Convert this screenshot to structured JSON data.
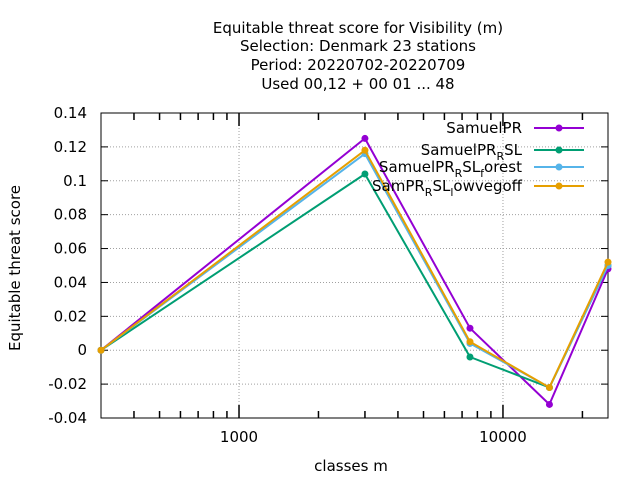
{
  "chart_data": {
    "type": "line",
    "title_lines": [
      "Equitable threat score  for Visibility (m)",
      "Selection: Denmark     23 stations",
      "Period: 20220702-20220709",
      "Used  00,12  + 00 01 ... 48"
    ],
    "xlabel": "classes m",
    "ylabel": "Equitable threat score",
    "x_scale": "log",
    "xlim": [
      300,
      25000
    ],
    "ylim": [
      -0.04,
      0.14
    ],
    "x_ticks": [
      1000,
      10000
    ],
    "x_tick_labels": [
      "1000",
      "10000"
    ],
    "y_ticks": [
      -0.04,
      -0.02,
      0,
      0.02,
      0.04,
      0.06,
      0.08,
      0.1,
      0.12,
      0.14
    ],
    "y_tick_labels": [
      "-0.04",
      "-0.02",
      "0",
      "0.02",
      "0.04",
      "0.06",
      "0.08",
      "0.1",
      "0.12",
      "0.14"
    ],
    "grid": true,
    "legend_position": "top-right",
    "x": [
      300,
      3000,
      7500,
      15000,
      25000
    ],
    "series": [
      {
        "legend_main": "SamuelPR",
        "legend_sub": "",
        "legend_tail": "",
        "color": "#9400d3",
        "values": [
          0,
          0.125,
          0.013,
          -0.032,
          0.048
        ]
      },
      {
        "legend_main": "SamuelPR",
        "legend_sub": "R",
        "legend_tail": "SL",
        "color": "#009e73",
        "values": [
          0,
          0.104,
          -0.004,
          -0.022,
          0.05
        ]
      },
      {
        "legend_main": "SamuelPR",
        "legend_sub": "R",
        "legend_tail": "SL",
        "legend_sub2": "f",
        "legend_tail2": "orest",
        "color": "#56b4e9",
        "values": [
          0,
          0.116,
          0.004,
          -0.022,
          0.05
        ]
      },
      {
        "legend_main": "SamPR",
        "legend_sub": "R",
        "legend_tail": "SL",
        "legend_sub2": "l",
        "legend_tail2": "owvegoff",
        "color": "#e69f00",
        "values": [
          0,
          0.118,
          0.005,
          -0.022,
          0.052
        ]
      }
    ]
  }
}
